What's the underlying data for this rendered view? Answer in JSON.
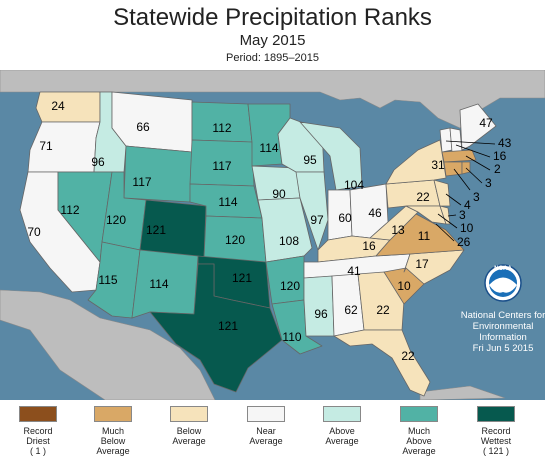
{
  "header": {
    "title": "Statewide Precipitation Ranks",
    "subtitle": "May 2015",
    "period": "Period: 1895–2015"
  },
  "map_ranks": {
    "WA": "24",
    "OR": "71",
    "CA": "70",
    "ID": "96",
    "NV": "112",
    "MT": "66",
    "WY": "117",
    "UT": "120",
    "AZ": "115",
    "CO": "121",
    "NM": "114",
    "ND": "112",
    "SD": "117",
    "NE": "114",
    "KS": "120",
    "OK": "121",
    "TX": "121",
    "MN": "114",
    "IA": "90",
    "MO": "108",
    "AR": "120",
    "LA": "110",
    "WI": "95",
    "IL": "97",
    "MI": "104",
    "IN": "60",
    "OH": "46",
    "KY": "16",
    "TN": "41",
    "MS": "96",
    "AL": "62",
    "GA": "22",
    "FL": "22",
    "SC": "10",
    "NC": "17",
    "VA": "11",
    "WV": "13",
    "PA": "22",
    "NY": "31",
    "ME": "47",
    "VT": "43",
    "NH": "16",
    "MA": "2",
    "RI": "3",
    "CT": "3",
    "NJ": "4",
    "DE": "3",
    "MD": "10",
    "DC": "26"
  },
  "legend": [
    {
      "lines": [
        "Record",
        "Driest",
        "( 1 )"
      ],
      "color": "#8c4f1d"
    },
    {
      "lines": [
        "Much",
        "Below",
        "Average"
      ],
      "color": "#d9a866"
    },
    {
      "lines": [
        "Below",
        "Average",
        ""
      ],
      "color": "#f6e3bb"
    },
    {
      "lines": [
        "Near",
        "Average",
        ""
      ],
      "color": "#f6f6f6"
    },
    {
      "lines": [
        "Above",
        "Average",
        ""
      ],
      "color": "#c5ebe3"
    },
    {
      "lines": [
        "Much",
        "Above",
        "Average"
      ],
      "color": "#51b2a5"
    },
    {
      "lines": [
        "Record",
        "Wettest",
        "( 121 )"
      ],
      "color": "#06594e"
    }
  ],
  "credit": {
    "logo_text": "NOAA",
    "line1": "National Centers for",
    "line2": "Environmental",
    "line3": "Information",
    "line4": "Fri Jun  5 2015"
  },
  "colors": {
    "record_wet": "#06594e",
    "much_above": "#51b2a5",
    "above": "#c5ebe3",
    "near": "#f6f6f6",
    "below": "#f6e3bb",
    "much_below": "#d9a866",
    "record_dry": "#8c4f1d",
    "land_outside": "#bdbdbd",
    "water": "#5a88a5"
  }
}
